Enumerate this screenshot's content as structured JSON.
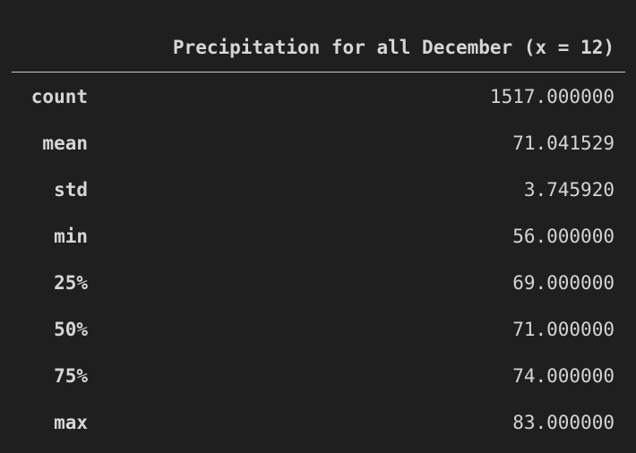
{
  "table": {
    "column_header": "Precipitation for all December (x = 12)",
    "rows": [
      {
        "label": "count",
        "value": "1517.000000"
      },
      {
        "label": "mean",
        "value": "71.041529"
      },
      {
        "label": "std",
        "value": "3.745920"
      },
      {
        "label": "min",
        "value": "56.000000"
      },
      {
        "label": "25%",
        "value": "69.000000"
      },
      {
        "label": "50%",
        "value": "71.000000"
      },
      {
        "label": "75%",
        "value": "74.000000"
      },
      {
        "label": "max",
        "value": "83.000000"
      }
    ]
  }
}
